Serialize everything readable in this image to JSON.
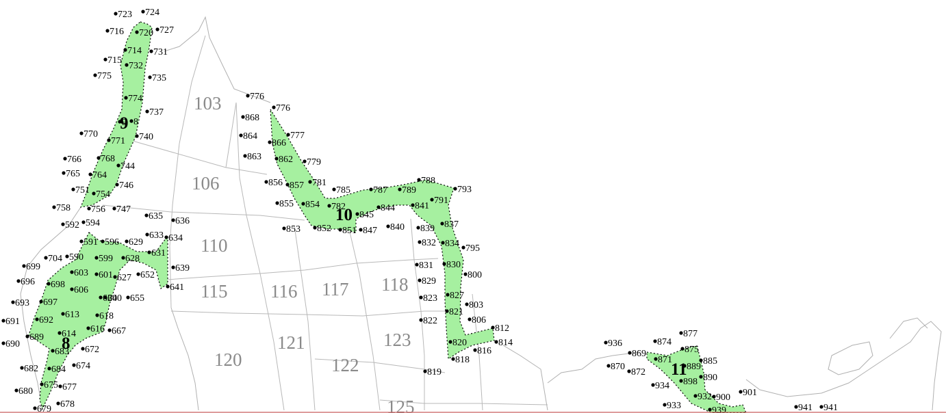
{
  "map": {
    "regions": [
      {
        "id": "r103",
        "label": "103"
      },
      {
        "id": "r106",
        "label": "106"
      },
      {
        "id": "r110",
        "label": "110"
      },
      {
        "id": "r115",
        "label": "115"
      },
      {
        "id": "r116",
        "label": "116"
      },
      {
        "id": "r117",
        "label": "117"
      },
      {
        "id": "r118",
        "label": "118"
      },
      {
        "id": "r120",
        "label": "120"
      },
      {
        "id": "r121",
        "label": "121"
      },
      {
        "id": "r122",
        "label": "122"
      },
      {
        "id": "r123",
        "label": "123"
      },
      {
        "id": "r125",
        "label": "125"
      }
    ],
    "zones": [
      {
        "id": "z8",
        "label": "8"
      },
      {
        "id": "z9",
        "label": "9"
      },
      {
        "id": "z10",
        "label": "10"
      },
      {
        "id": "z11",
        "label": "11"
      }
    ],
    "points": [
      "723",
      "724",
      "716",
      "720",
      "727",
      "714",
      "731",
      "715",
      "732",
      "775",
      "735",
      "774",
      "737",
      "9",
      "8",
      "770",
      "740",
      "771",
      "766",
      "768",
      "744",
      "765",
      "764",
      "746",
      "751",
      "754",
      "758",
      "756",
      "747",
      "635",
      "636",
      "592",
      "594",
      "633",
      "634",
      "591",
      "596",
      "629",
      "704",
      "590",
      "599",
      "628",
      "631",
      "639",
      "699",
      "603",
      "601",
      "627",
      "652",
      "696",
      "698",
      "606",
      "640",
      "641",
      "655",
      "693",
      "697",
      "620",
      "691",
      "692",
      "613",
      "618",
      "690",
      "689",
      "614",
      "616",
      "667",
      "683",
      "672",
      "682",
      "684",
      "674",
      "680",
      "675",
      "677",
      "679",
      "678",
      "776",
      "776",
      "868",
      "864",
      "866",
      "777",
      "863",
      "862",
      "779",
      "856",
      "857",
      "781",
      "785",
      "787",
      "789",
      "788",
      "793",
      "855",
      "854",
      "782",
      "845",
      "844",
      "841",
      "791",
      "853",
      "852",
      "851",
      "847",
      "840",
      "839",
      "837",
      "832",
      "834",
      "795",
      "831",
      "830",
      "829",
      "800",
      "823",
      "827",
      "803",
      "822",
      "821",
      "806",
      "812",
      "820",
      "814",
      "816",
      "819",
      "818",
      "936",
      "874",
      "877",
      "869",
      "871",
      "875",
      "885",
      "870",
      "872",
      "889",
      "890",
      "934",
      "898",
      "932",
      "900",
      "901",
      "933",
      "939",
      "941",
      "941"
    ]
  }
}
